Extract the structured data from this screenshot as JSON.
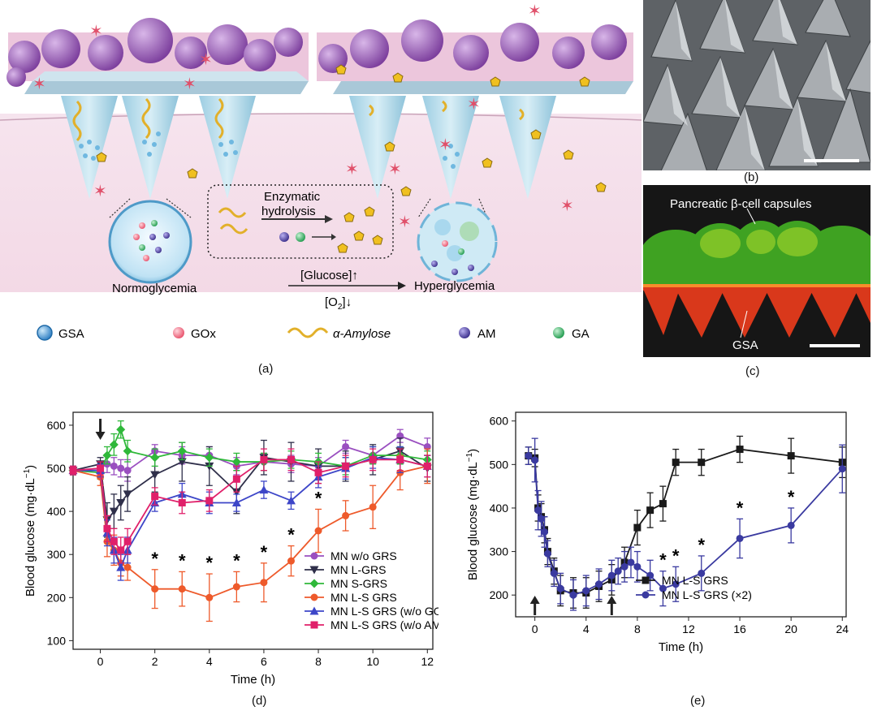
{
  "captions": {
    "a": "(a)",
    "b": "(b)",
    "c": "(c)",
    "d": "(d)",
    "e": "(e)"
  },
  "panel_a": {
    "enzymatic_line1": "Enzymatic",
    "enzymatic_line2": "hydrolysis",
    "normoglycemia": "Normoglycemia",
    "hyperglycemia": "Hyperglycemia",
    "glucose_cond": "[Glucose]↑",
    "o2_cond": "[O2]↓",
    "legend": [
      {
        "icon": "gsa-sphere-icon",
        "label": "GSA",
        "color": "#3a8fd0"
      },
      {
        "icon": "gox-dot-icon",
        "label": "GOx",
        "color": "#f06a80"
      },
      {
        "icon": "amylose-helix-icon",
        "label": "α-Amylose",
        "color": "#e8b838"
      },
      {
        "icon": "am-dot-icon",
        "label": "AM",
        "color": "#4b3d9a"
      },
      {
        "icon": "ga-dot-icon",
        "label": "GA",
        "color": "#35b868"
      }
    ]
  },
  "panel_c": {
    "capsules_label": "Pancreatic β-cell capsules",
    "gsa_label": "GSA"
  },
  "chart_data": [
    {
      "id": "d",
      "type": "line",
      "xlabel": "Time (h)",
      "ylabel": "Blood glucose (mg·dL⁻¹)",
      "xlim": [
        -1,
        12.2
      ],
      "ylim": [
        80,
        630
      ],
      "xticks": [
        0,
        2,
        4,
        6,
        8,
        10,
        12
      ],
      "yticks": [
        100,
        200,
        300,
        400,
        500,
        600
      ],
      "grid": false,
      "legend_position": "bottom-right",
      "arrow_at_x": [
        0
      ],
      "significance_x": [
        2,
        3,
        4,
        5,
        6,
        7,
        8
      ],
      "series": [
        {
          "name": "MN w/o GRS",
          "color": "#9a4fc0",
          "marker": "circle",
          "x": [
            -1,
            0,
            0.25,
            0.5,
            0.75,
            1,
            2,
            3,
            4,
            5,
            6,
            7,
            8,
            9,
            10,
            11,
            12
          ],
          "y": [
            495,
            500,
            510,
            505,
            500,
            495,
            540,
            530,
            530,
            505,
            515,
            510,
            505,
            550,
            530,
            575,
            550
          ],
          "err": [
            10,
            15,
            20,
            20,
            20,
            25,
            15,
            20,
            20,
            20,
            20,
            20,
            20,
            15,
            20,
            15,
            20
          ]
        },
        {
          "name": "MN L-GRS",
          "color": "#2f2f4a",
          "marker": "triangle-down",
          "x": [
            -1,
            0,
            0.25,
            0.5,
            0.75,
            1,
            2,
            3,
            4,
            5,
            6,
            7,
            8,
            9,
            10,
            11,
            12
          ],
          "y": [
            495,
            510,
            380,
            400,
            420,
            440,
            485,
            515,
            505,
            445,
            525,
            515,
            505,
            505,
            520,
            540,
            500
          ],
          "err": [
            10,
            15,
            40,
            40,
            40,
            40,
            40,
            45,
            45,
            50,
            40,
            45,
            40,
            35,
            35,
            30,
            30
          ]
        },
        {
          "name": "MN S-GRS",
          "color": "#2fb83a",
          "marker": "diamond",
          "x": [
            -1,
            0,
            0.25,
            0.5,
            0.75,
            1,
            2,
            3,
            4,
            5,
            6,
            7,
            8,
            9,
            10,
            11,
            12
          ],
          "y": [
            495,
            490,
            530,
            555,
            590,
            540,
            525,
            540,
            525,
            515,
            515,
            520,
            515,
            505,
            530,
            530,
            520
          ],
          "err": [
            10,
            15,
            20,
            25,
            20,
            25,
            20,
            20,
            20,
            20,
            20,
            20,
            20,
            20,
            20,
            20,
            20
          ]
        },
        {
          "name": "MN L-S GRS",
          "color": "#ee5a2b",
          "marker": "circle",
          "x": [
            -1,
            0,
            0.25,
            0.5,
            0.75,
            1,
            2,
            3,
            4,
            5,
            6,
            7,
            8,
            9,
            10,
            11,
            12
          ],
          "y": [
            495,
            480,
            330,
            310,
            280,
            270,
            220,
            220,
            200,
            225,
            235,
            285,
            355,
            390,
            410,
            490,
            505
          ],
          "err": [
            10,
            20,
            35,
            35,
            30,
            30,
            45,
            40,
            55,
            35,
            45,
            35,
            50,
            35,
            50,
            40,
            40
          ]
        },
        {
          "name": "MN L-S GRS (w/o GOx)",
          "color": "#3d46c8",
          "marker": "triangle-up",
          "x": [
            -1,
            0,
            0.25,
            0.5,
            0.75,
            1,
            2,
            3,
            4,
            5,
            6,
            7,
            8,
            9,
            10,
            11,
            12
          ],
          "y": [
            495,
            495,
            350,
            310,
            270,
            310,
            420,
            440,
            420,
            420,
            450,
            425,
            480,
            500,
            525,
            520,
            505
          ],
          "err": [
            10,
            15,
            30,
            30,
            30,
            30,
            20,
            25,
            25,
            20,
            20,
            20,
            25,
            25,
            25,
            30,
            25
          ]
        },
        {
          "name": "MN L-S GRS (w/o AM)",
          "color": "#e0206a",
          "marker": "square",
          "x": [
            -1,
            0,
            0.25,
            0.5,
            0.75,
            1,
            2,
            3,
            4,
            5,
            6,
            7,
            8,
            9,
            10,
            11,
            12
          ],
          "y": [
            495,
            500,
            360,
            330,
            310,
            330,
            435,
            420,
            425,
            475,
            520,
            520,
            490,
            505,
            520,
            520,
            505
          ],
          "err": [
            10,
            15,
            30,
            30,
            30,
            30,
            20,
            25,
            25,
            30,
            25,
            25,
            25,
            25,
            25,
            25,
            25
          ]
        }
      ]
    },
    {
      "id": "e",
      "type": "line",
      "xlabel": "Time (h)",
      "ylabel": "Blood glucose (mg·dL⁻¹)",
      "xlim": [
        -1.5,
        24.3
      ],
      "ylim": [
        150,
        620
      ],
      "xticks": [
        0,
        4,
        8,
        12,
        16,
        20,
        24
      ],
      "yticks": [
        200,
        300,
        400,
        500,
        600
      ],
      "grid": false,
      "legend_position": "bottom-right",
      "arrow_at_x": [
        0,
        6
      ],
      "significance_x": [
        10,
        11,
        13,
        16,
        20
      ],
      "series": [
        {
          "name": "MN L-S GRS",
          "color": "#1a1a1a",
          "marker": "square",
          "x": [
            -0.5,
            0,
            0.25,
            0.5,
            0.75,
            1,
            1.5,
            2,
            3,
            4,
            5,
            6,
            7,
            8,
            9,
            10,
            11,
            13,
            16,
            20,
            24
          ],
          "y": [
            520,
            515,
            400,
            380,
            350,
            300,
            255,
            210,
            205,
            205,
            220,
            235,
            275,
            355,
            395,
            410,
            505,
            505,
            535,
            520,
            505
          ],
          "err": [
            20,
            20,
            30,
            30,
            30,
            30,
            30,
            35,
            35,
            35,
            35,
            35,
            35,
            40,
            40,
            40,
            30,
            30,
            30,
            40,
            35
          ]
        },
        {
          "name": "MN L-S GRS (×2)",
          "color": "#3a3aa0",
          "marker": "circle",
          "x": [
            -0.5,
            0,
            0.25,
            0.5,
            0.75,
            1,
            1.5,
            2,
            3,
            4,
            5,
            6,
            6.5,
            7,
            7.5,
            8,
            9,
            10,
            11,
            13,
            16,
            20,
            24
          ],
          "y": [
            520,
            510,
            395,
            375,
            345,
            295,
            250,
            215,
            200,
            210,
            225,
            245,
            255,
            265,
            275,
            265,
            245,
            215,
            225,
            250,
            330,
            360,
            490
          ],
          "err": [
            20,
            50,
            45,
            40,
            35,
            30,
            30,
            35,
            35,
            35,
            35,
            35,
            30,
            35,
            35,
            35,
            35,
            40,
            40,
            40,
            45,
            40,
            55
          ]
        }
      ]
    }
  ]
}
